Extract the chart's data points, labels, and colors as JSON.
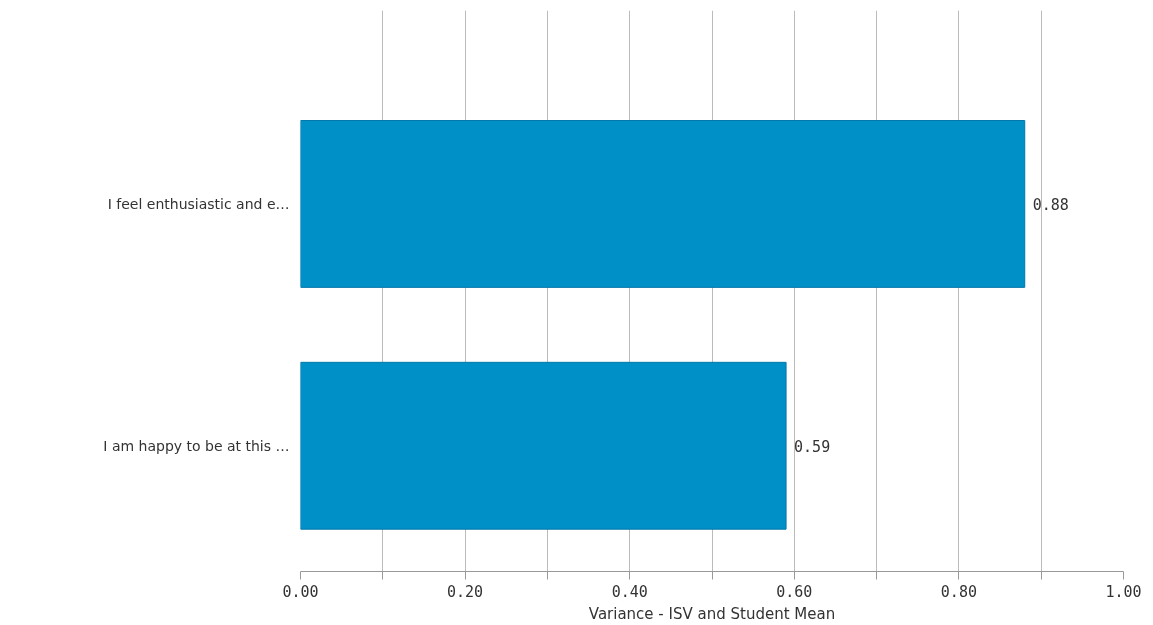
{
  "chart_data": {
    "type": "bar",
    "orientation": "horizontal",
    "xlabel": "Variance - ISV and Student Mean",
    "categories": [
      "I feel enthusiastic and e…",
      "I am happy to be at this …"
    ],
    "values": [
      0.88,
      0.59
    ],
    "color": "#0090c8",
    "data_labels": true,
    "xlim": [
      0,
      1
    ],
    "xticks": [
      {
        "value": 0,
        "label": "0.00"
      },
      {
        "value": 0.1,
        "label": null
      },
      {
        "value": 0.2,
        "label": "0.20"
      },
      {
        "value": 0.3,
        "label": null
      },
      {
        "value": 0.4,
        "label": "0.40"
      },
      {
        "value": 0.5,
        "label": null
      },
      {
        "value": 0.6,
        "label": "0.60"
      },
      {
        "value": 0.7,
        "label": null
      },
      {
        "value": 0.8,
        "label": "0.80"
      },
      {
        "value": 0.9,
        "label": null
      },
      {
        "value": 1,
        "label": "1.00"
      }
    ],
    "grid": "x"
  }
}
